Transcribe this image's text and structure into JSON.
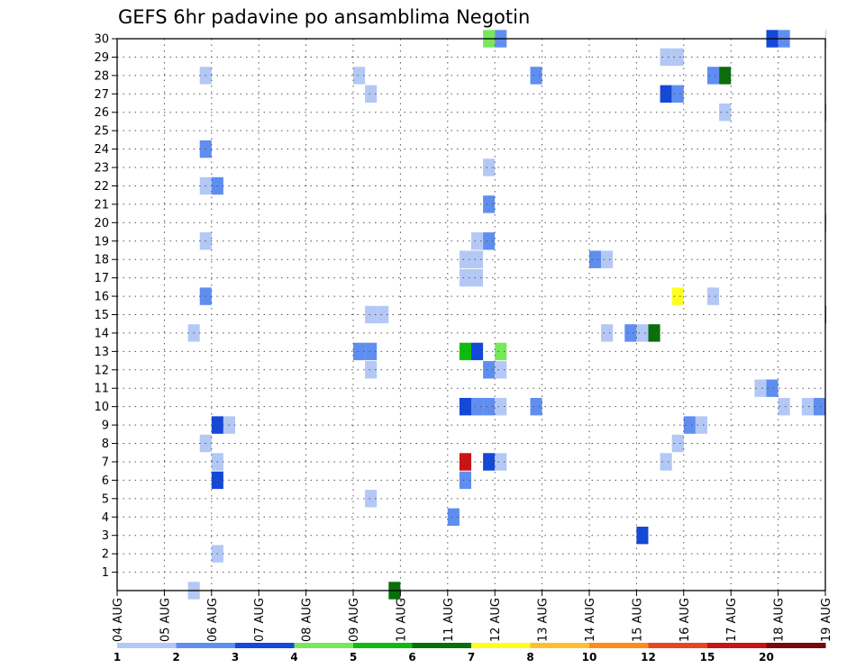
{
  "chart_data": {
    "type": "heatmap",
    "title": "GEFS 6hr padavine po ansamblima Negotin",
    "xlabel": "",
    "ylabel": "",
    "x_tick_labels": [
      "04 AUG",
      "05 AUG",
      "06 AUG",
      "07 AUG",
      "08 AUG",
      "09 AUG",
      "10 AUG",
      "11 AUG",
      "12 AUG",
      "13 AUG",
      "14 AUG",
      "15 AUG",
      "16 AUG",
      "17 AUG",
      "18 AUG",
      "19 AUG"
    ],
    "x_range_days": [
      0,
      15
    ],
    "y_tick_labels": [
      "1",
      "2",
      "3",
      "4",
      "5",
      "6",
      "7",
      "8",
      "9",
      "10",
      "11",
      "12",
      "13",
      "14",
      "15",
      "16",
      "17",
      "18",
      "19",
      "20",
      "21",
      "22",
      "23",
      "24",
      "25",
      "26",
      "27",
      "28",
      "29",
      "30"
    ],
    "y_range": [
      0,
      30
    ],
    "grid": true,
    "legend": {
      "placement": "bottom",
      "labels": [
        "1",
        "2",
        "3",
        "4",
        "5",
        "6",
        "7",
        "8",
        "10",
        "12",
        "15",
        "20"
      ],
      "colors": [
        "#b3c8f5",
        "#5f8ef0",
        "#1448d8",
        "#78e85a",
        "#10bb10",
        "#0a6e0a",
        "#ffff1e",
        "#ffbe32",
        "#ff8c1a",
        "#e8461e",
        "#c81414",
        "#780a0a"
      ]
    },
    "cell_width_days": 0.25,
    "cells": [
      {
        "member": 30,
        "day": 7.75,
        "level": 4
      },
      {
        "member": 30,
        "day": 8.0,
        "level": 2
      },
      {
        "member": 30,
        "day": 13.75,
        "level": 3
      },
      {
        "member": 30,
        "day": 14.0,
        "level": 2
      },
      {
        "member": 30,
        "day": 15.0,
        "level": 1
      },
      {
        "member": 29,
        "day": 11.5,
        "level": 1
      },
      {
        "member": 29,
        "day": 11.75,
        "level": 1
      },
      {
        "member": 28,
        "day": 1.75,
        "level": 1
      },
      {
        "member": 28,
        "day": 5.0,
        "level": 1
      },
      {
        "member": 28,
        "day": 8.75,
        "level": 2
      },
      {
        "member": 28,
        "day": 12.5,
        "level": 2
      },
      {
        "member": 28,
        "day": 12.75,
        "level": 6
      },
      {
        "member": 27,
        "day": 5.25,
        "level": 1
      },
      {
        "member": 27,
        "day": 11.5,
        "level": 3
      },
      {
        "member": 27,
        "day": 11.75,
        "level": 2
      },
      {
        "member": 26,
        "day": 12.75,
        "level": 1
      },
      {
        "member": 26,
        "day": 15.0,
        "level": 2
      },
      {
        "member": 24,
        "day": 1.75,
        "level": 2
      },
      {
        "member": 23,
        "day": 7.75,
        "level": 1
      },
      {
        "member": 22,
        "day": 1.75,
        "level": 1
      },
      {
        "member": 22,
        "day": 2.0,
        "level": 2
      },
      {
        "member": 21,
        "day": 7.75,
        "level": 2
      },
      {
        "member": 20,
        "day": 15.0,
        "level": 2
      },
      {
        "member": 19,
        "day": 1.75,
        "level": 1
      },
      {
        "member": 19,
        "day": 7.5,
        "level": 1
      },
      {
        "member": 19,
        "day": 7.75,
        "level": 2
      },
      {
        "member": 18,
        "day": 7.25,
        "level": 1
      },
      {
        "member": 18,
        "day": 7.5,
        "level": 1
      },
      {
        "member": 18,
        "day": 10.0,
        "level": 2
      },
      {
        "member": 18,
        "day": 10.25,
        "level": 1
      },
      {
        "member": 17,
        "day": 7.25,
        "level": 1
      },
      {
        "member": 17,
        "day": 7.5,
        "level": 1
      },
      {
        "member": 16,
        "day": 1.75,
        "level": 2
      },
      {
        "member": 16,
        "day": 11.75,
        "level": 7
      },
      {
        "member": 16,
        "day": 12.5,
        "level": 1
      },
      {
        "member": 15,
        "day": 5.25,
        "level": 1
      },
      {
        "member": 15,
        "day": 5.5,
        "level": 1
      },
      {
        "member": 15,
        "day": 15.0,
        "level": 3
      },
      {
        "member": 14,
        "day": 1.5,
        "level": 1
      },
      {
        "member": 14,
        "day": 10.25,
        "level": 1
      },
      {
        "member": 14,
        "day": 10.75,
        "level": 2
      },
      {
        "member": 14,
        "day": 11.0,
        "level": 1
      },
      {
        "member": 14,
        "day": 11.25,
        "level": 6
      },
      {
        "member": 13,
        "day": 5.0,
        "level": 2
      },
      {
        "member": 13,
        "day": 5.25,
        "level": 2
      },
      {
        "member": 13,
        "day": 7.25,
        "level": 5
      },
      {
        "member": 13,
        "day": 7.5,
        "level": 3
      },
      {
        "member": 13,
        "day": 8.0,
        "level": 4
      },
      {
        "member": 12,
        "day": 5.25,
        "level": 1
      },
      {
        "member": 12,
        "day": 7.75,
        "level": 2
      },
      {
        "member": 12,
        "day": 8.0,
        "level": 1
      },
      {
        "member": 11,
        "day": 13.5,
        "level": 1
      },
      {
        "member": 11,
        "day": 13.75,
        "level": 2
      },
      {
        "member": 10,
        "day": 7.25,
        "level": 3
      },
      {
        "member": 10,
        "day": 7.5,
        "level": 2
      },
      {
        "member": 10,
        "day": 7.75,
        "level": 2
      },
      {
        "member": 10,
        "day": 8.0,
        "level": 1
      },
      {
        "member": 10,
        "day": 8.75,
        "level": 2
      },
      {
        "member": 10,
        "day": 14.0,
        "level": 1
      },
      {
        "member": 10,
        "day": 14.5,
        "level": 1
      },
      {
        "member": 10,
        "day": 14.75,
        "level": 2
      },
      {
        "member": 9,
        "day": 2.0,
        "level": 3
      },
      {
        "member": 9,
        "day": 2.25,
        "level": 1
      },
      {
        "member": 9,
        "day": 12.0,
        "level": 2
      },
      {
        "member": 9,
        "day": 12.25,
        "level": 1
      },
      {
        "member": 8,
        "day": 1.75,
        "level": 1
      },
      {
        "member": 8,
        "day": 11.75,
        "level": 1
      },
      {
        "member": 7,
        "day": 2.0,
        "level": 1
      },
      {
        "member": 7,
        "day": 7.25,
        "level": 11
      },
      {
        "member": 7,
        "day": 7.75,
        "level": 3
      },
      {
        "member": 7,
        "day": 8.0,
        "level": 1
      },
      {
        "member": 7,
        "day": 11.5,
        "level": 1
      },
      {
        "member": 6,
        "day": 2.0,
        "level": 3
      },
      {
        "member": 6,
        "day": 7.25,
        "level": 2
      },
      {
        "member": 5,
        "day": 5.25,
        "level": 1
      },
      {
        "member": 4,
        "day": 7.0,
        "level": 2
      },
      {
        "member": 3,
        "day": 11.0,
        "level": 3
      },
      {
        "member": 2,
        "day": 2.0,
        "level": 1
      },
      {
        "member": 0,
        "day": 1.5,
        "level": 1
      },
      {
        "member": 0,
        "day": 5.75,
        "level": 6
      }
    ]
  }
}
